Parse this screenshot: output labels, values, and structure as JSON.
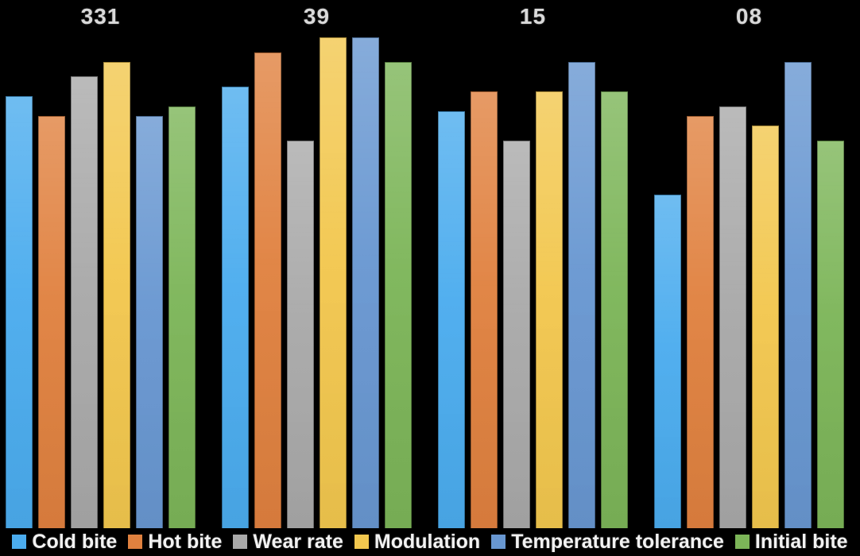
{
  "chart_data": {
    "type": "bar",
    "title": "",
    "categories": [
      "331",
      "39",
      "15",
      "08"
    ],
    "series": [
      {
        "name": "Cold bite",
        "color": "#4BACEE",
        "values": [
          8.8,
          9.0,
          8.5,
          6.8
        ]
      },
      {
        "name": "Hot bite",
        "color": "#E0813F",
        "values": [
          8.4,
          9.7,
          8.9,
          8.4
        ]
      },
      {
        "name": "Wear rate",
        "color": "#A9A9A9",
        "values": [
          9.2,
          7.9,
          7.9,
          8.6
        ]
      },
      {
        "name": "Modulation",
        "color": "#F2C74E",
        "values": [
          9.5,
          10.0,
          8.9,
          8.2
        ]
      },
      {
        "name": "Temperature tolerance",
        "color": "#6897D1",
        "values": [
          8.4,
          10.0,
          9.5,
          9.5
        ]
      },
      {
        "name": "Initial bite",
        "color": "#7CB558",
        "values": [
          8.6,
          9.5,
          8.9,
          7.9
        ]
      }
    ],
    "ylim": [
      0,
      10
    ],
    "grid": false,
    "axes_visible": false,
    "legend_position": "bottom",
    "background_color": "#000000",
    "category_label_color": "#D9D9D9",
    "legend_text_color": "#F2F2F2"
  }
}
